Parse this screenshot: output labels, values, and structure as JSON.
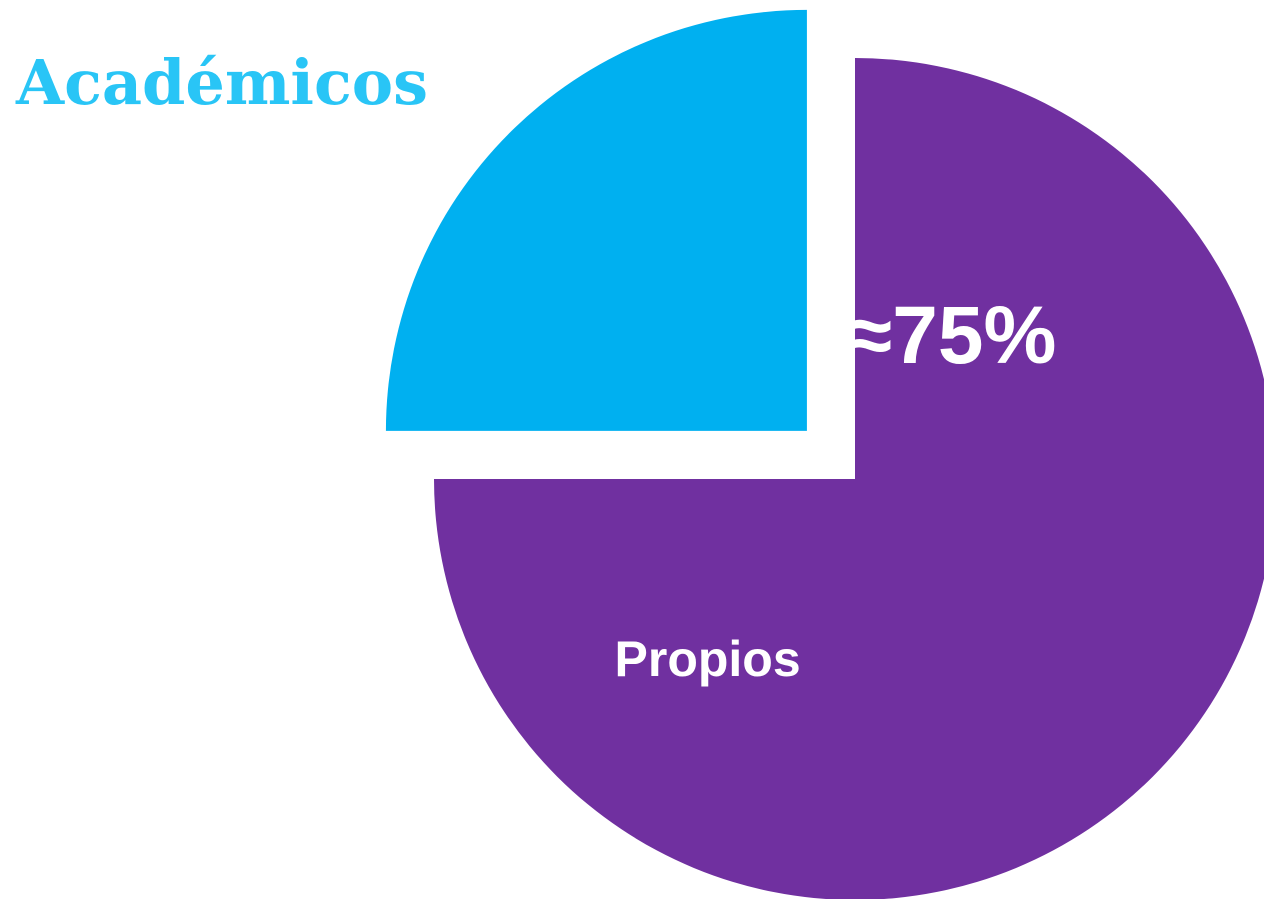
{
  "chart_data": {
    "type": "pie",
    "categories": [
      "Propios",
      "Académicos"
    ],
    "values": [
      75,
      25
    ],
    "value_labels": [
      "≈75%",
      null
    ],
    "colors": [
      "#7030a0",
      "#00b0f0"
    ],
    "category_colors": [
      "#ffffff",
      "#29c5f6"
    ]
  }
}
